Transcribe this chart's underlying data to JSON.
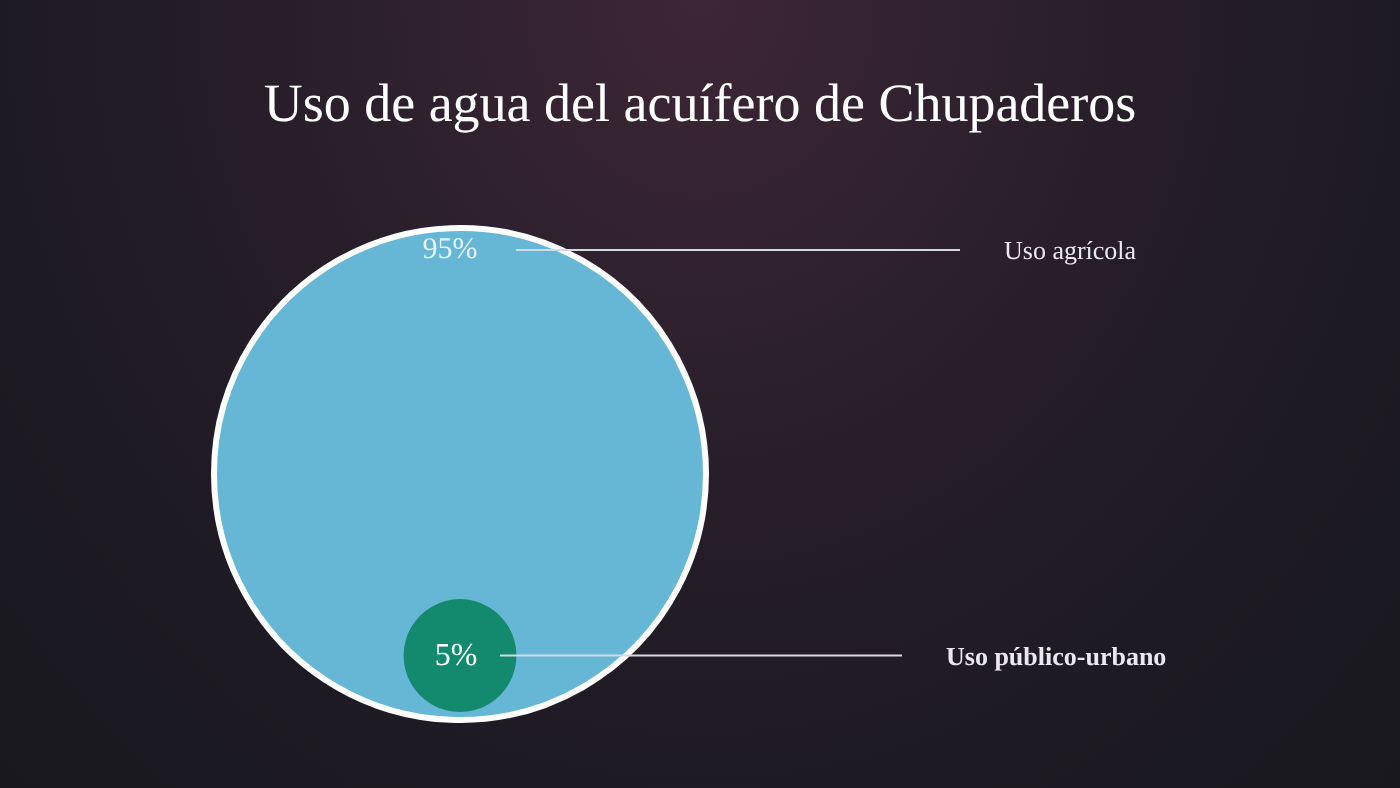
{
  "chart_data": {
    "type": "other",
    "title": "Uso de agua del acuífero de Chupaderos",
    "categories": [
      "Uso agrícola",
      "Uso público-urbano"
    ],
    "values": [
      95,
      5
    ],
    "value_labels": [
      "95%",
      "5%"
    ],
    "colors": [
      "#66b6d6",
      "#138a6e"
    ]
  }
}
